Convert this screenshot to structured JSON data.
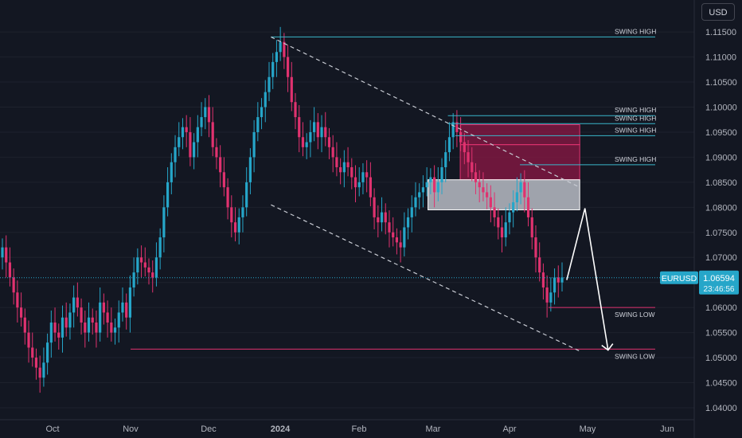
{
  "currency_button": "USD",
  "colors": {
    "background": "#131722",
    "up": "#26a6c9",
    "down": "#e0326f",
    "swing_high_line": "#3ab6c9",
    "swing_low_line": "#e0326f",
    "supply_zone": "#8e1846",
    "demand_zone": "#b8bcc4"
  },
  "chart_data": {
    "type": "candlestick",
    "symbol": "EURUSD",
    "last_price": "1.06594",
    "countdown": "23:46:56",
    "x_ticks": [
      "Oct",
      "Nov",
      "Dec",
      "2024",
      "Feb",
      "Mar",
      "Apr",
      "May",
      "Jun"
    ],
    "y_ticks": [
      "1.11500",
      "1.11000",
      "1.10500",
      "1.10000",
      "1.09500",
      "1.09000",
      "1.08500",
      "1.08000",
      "1.07500",
      "1.07000",
      "1.06500",
      "1.06000",
      "1.05500",
      "1.05000",
      "1.04500",
      "1.04000"
    ],
    "ylim": [
      1.0392,
      1.1182
    ],
    "series_close": [
      1.072,
      1.069,
      1.066,
      1.063,
      1.06,
      1.058,
      1.055,
      1.052,
      1.05,
      1.048,
      1.046,
      1.049,
      1.053,
      1.057,
      1.055,
      1.054,
      1.058,
      1.056,
      1.059,
      1.062,
      1.06,
      1.057,
      1.055,
      1.058,
      1.057,
      1.055,
      1.061,
      1.059,
      1.057,
      1.055,
      1.056,
      1.059,
      1.061,
      1.058,
      1.064,
      1.067,
      1.07,
      1.069,
      1.068,
      1.067,
      1.066,
      1.07,
      1.074,
      1.08,
      1.085,
      1.089,
      1.092,
      1.094,
      1.096,
      1.095,
      1.09,
      1.093,
      1.096,
      1.098,
      1.1,
      1.097,
      1.092,
      1.09,
      1.087,
      1.084,
      1.08,
      1.077,
      1.075,
      1.078,
      1.08,
      1.085,
      1.09,
      1.095,
      1.098,
      1.1,
      1.103,
      1.106,
      1.109,
      1.111,
      1.113,
      1.11,
      1.106,
      1.101,
      1.098,
      1.094,
      1.092,
      1.093,
      1.095,
      1.097,
      1.094,
      1.096,
      1.094,
      1.092,
      1.09,
      1.088,
      1.087,
      1.089,
      1.088,
      1.086,
      1.084,
      1.085,
      1.087,
      1.086,
      1.082,
      1.078,
      1.077,
      1.079,
      1.077,
      1.075,
      1.074,
      1.073,
      1.072,
      1.076,
      1.078,
      1.08,
      1.082,
      1.083,
      1.084,
      1.085,
      1.086,
      1.083,
      1.085,
      1.088,
      1.091,
      1.094,
      1.097,
      1.095,
      1.093,
      1.091,
      1.089,
      1.087,
      1.085,
      1.084,
      1.083,
      1.082,
      1.08,
      1.078,
      1.076,
      1.074,
      1.077,
      1.079,
      1.081,
      1.083,
      1.085,
      1.082,
      1.078,
      1.074,
      1.07,
      1.067,
      1.064,
      1.061,
      1.063,
      1.066,
      1.065,
      1.066
    ],
    "channel": {
      "upper": [
        [
          "2023-12-28",
          1.114
        ],
        [
          "2024-04-28",
          1.084
        ]
      ],
      "lower": [
        [
          "2023-12-28",
          1.0805
        ],
        [
          "2024-04-28",
          1.0513
        ]
      ]
    },
    "zones": [
      {
        "kind": "supply",
        "x": [
          "2024-03-12",
          "2024-04-28"
        ],
        "y": [
          1.0925,
          1.0965
        ]
      },
      {
        "kind": "supply",
        "x": [
          "2024-03-12",
          "2024-04-28"
        ],
        "y": [
          1.0855,
          1.0925
        ]
      },
      {
        "kind": "demand",
        "x": [
          "2024-02-28",
          "2024-04-28"
        ],
        "y": [
          1.0795,
          1.0855
        ]
      }
    ],
    "levels": [
      {
        "label": "SWING HIGH",
        "price": 1.114,
        "from": "2023-12-28"
      },
      {
        "label": "SWING HIGH",
        "price": 1.0983,
        "from": "2024-03-07"
      },
      {
        "label": "SWING HIGH",
        "price": 1.0967,
        "from": "2024-03-07"
      },
      {
        "label": "SWING HIGH",
        "price": 1.0943,
        "from": "2024-03-10"
      },
      {
        "label": "SWING HIGH",
        "price": 1.0885,
        "from": "2024-04-05"
      },
      {
        "label": "SWING LOW",
        "price": 1.06,
        "from": "2024-04-16"
      },
      {
        "label": "SWING LOW",
        "price": 1.0517,
        "from": "2023-11-01"
      }
    ],
    "projection": [
      [
        "2024-04-23",
        1.0655
      ],
      [
        "2024-04-30",
        1.0798
      ],
      [
        "2024-05-09",
        1.0515
      ]
    ]
  }
}
